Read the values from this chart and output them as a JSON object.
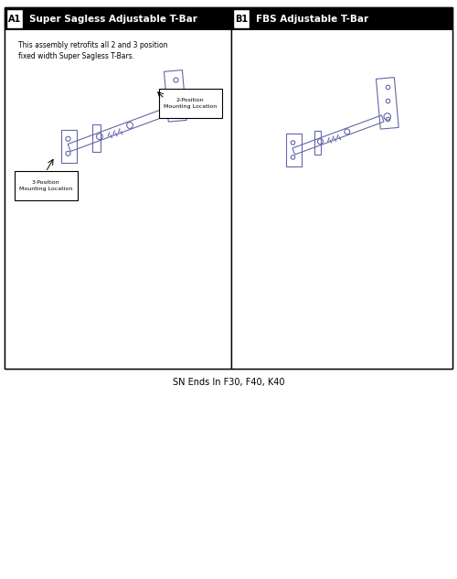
{
  "fig_width": 5.0,
  "fig_height": 6.33,
  "bg_color": "#ffffff",
  "panel_a_title": "Super Sagless Adjustable T-Bar",
  "panel_b_title": "FBS Adjustable T-Bar",
  "label_a": "A1",
  "label_b": "B1",
  "description_text": "This assembly retrofits all 2 and 3 position\nfixed width Super Sagless T-Bars.",
  "annotation_2pos": "2-Position\nMounting Location",
  "annotation_3pos": "3-Position\nMounting Location",
  "footer_text": "SN Ends In F30, F40, K40",
  "part_color": "#6666aa",
  "header_bg": "#000000",
  "header_fg": "#ffffff",
  "label_bg": "#ffffff",
  "label_fg": "#000000",
  "outline_color": "#000000"
}
